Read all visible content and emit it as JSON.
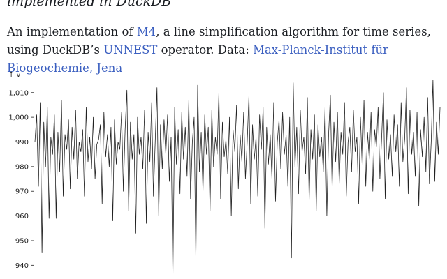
{
  "page": {
    "subtitle": "implemented in DuckDB",
    "description": {
      "part1": "An implementation of ",
      "link_m4": "M4",
      "part2": ", a line simplification algorithm for time series, using DuckDB’s ",
      "link_unnest": "UNNEST",
      "part3": " operator. Data: ",
      "link_data": "Max-Planck-Institut für Biogeochemie, Jena"
    },
    "link_color": "#3b5fc0"
  },
  "chart_data": {
    "type": "line",
    "ylabel": "↑ v",
    "xlabel": "",
    "ylim": [
      935,
      1017
    ],
    "y_ticks": [
      940,
      950,
      960,
      970,
      980,
      990,
      1000,
      1010
    ],
    "y_tick_labels": [
      "940",
      "950",
      "960",
      "970",
      "980",
      "990",
      "1,000",
      "1,010"
    ],
    "grid": false,
    "stroke_color": "#222222",
    "series": [
      {
        "values": [
          990,
          1001,
          972,
          1006,
          945,
          998,
          980,
          1004,
          959,
          992,
          985,
          1001,
          959,
          994,
          978,
          1007,
          968,
          993,
          987,
          999,
          971,
          996,
          983,
          1003,
          975,
          990,
          986,
          995,
          968,
          1004,
          982,
          992,
          979,
          1000,
          975,
          989,
          991,
          997,
          965,
          1002,
          984,
          993,
          980,
          996,
          958,
          999,
          981,
          990,
          987,
          1002,
          970,
          995,
          1011,
          962,
          998,
          983,
          993,
          953,
          1000,
          985,
          992,
          979,
          1003,
          957,
          994,
          982,
          1006,
          968,
          990,
          1012,
          960,
          997,
          979,
          999,
          985,
          1001,
          974,
          992,
          935,
          1004,
          981,
          995,
          969,
          1002,
          983,
          996,
          976,
          1007,
          967,
          990,
          1000,
          942,
          1013,
          978,
          994,
          970,
          1001,
          985,
          996,
          962,
          1003,
          980,
          992,
          985,
          1010,
          967,
          998,
          984,
          991,
          977,
          1000,
          960,
          995,
          986,
          1005,
          971,
          993,
          982,
          1002,
          975,
          990,
          1009,
          965,
          997,
          983,
          992,
          968,
          1001,
          987,
          1004,
          955,
          996,
          981,
          993,
          975,
          1006,
          966,
          990,
          999,
          979,
          1002,
          985,
          993,
          972,
          1000,
          943,
          1014,
          980,
          996,
          969,
          1003,
          986,
          992,
          977,
          1008,
          966,
          995,
          983,
          1001,
          962,
          997,
          984,
          992,
          978,
          1004,
          960,
          993,
          1009,
          971,
          998,
          982,
          1002,
          973,
          994,
          985,
          1006,
          968,
          990,
          996,
          978,
          1003,
          986,
          992,
          965,
          1000,
          980,
          1007,
          972,
          994,
          983,
          1002,
          970,
          995,
          988,
          1004,
          975,
          992,
          1010,
          967,
          999,
          983,
          993,
          976,
          1001,
          986,
          997,
          972,
          1006,
          982,
          991,
          1012,
          969,
          1003,
          985,
          994,
          976,
          1002,
          964,
          995,
          984,
          1000,
          978,
          1008,
          973,
          990,
          1015,
          974,
          998,
          985,
          1004
        ]
      }
    ]
  }
}
